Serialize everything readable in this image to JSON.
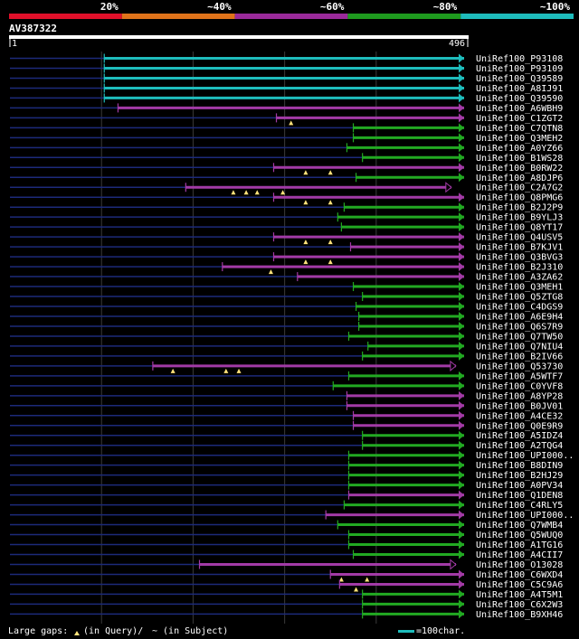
{
  "chart_data": {
    "type": "alignment-map",
    "title": "AV387322",
    "query_start_label": "1",
    "query_end_label": "496",
    "query_length": 496,
    "identity_scale": [
      {
        "label": "20%",
        "color": "#e0102a"
      },
      {
        "label": "~40%",
        "color": "#e0731a"
      },
      {
        "label": "~60%",
        "color": "#9a2a9a"
      },
      {
        "label": "~80%",
        "color": "#1e9a1e"
      },
      {
        "label": "~100%",
        "color": "#1ebcbc"
      }
    ],
    "colors": {
      "high": "#1ebcbc",
      "mid": "#a23aa6",
      "low": "#22a922",
      "gap": "#1c2a7a",
      "grid": "#3a3a3a",
      "marker": "#ffe37a"
    },
    "hits": [
      {
        "label": "UniRef100_P93108",
        "start": 103,
        "tier": "high",
        "gaps": []
      },
      {
        "label": "UniRef100_P93109",
        "start": 103,
        "tier": "high",
        "gaps": []
      },
      {
        "label": "UniRef100_Q39589",
        "start": 103,
        "tier": "high",
        "gaps": []
      },
      {
        "label": "UniRef100_A8IJ91",
        "start": 103,
        "tier": "high",
        "gaps": []
      },
      {
        "label": "UniRef100_Q39590",
        "start": 103,
        "tier": "high",
        "gaps": []
      },
      {
        "label": "UniRef100_A6WBH9",
        "start": 118,
        "tier": "mid",
        "gaps": []
      },
      {
        "label": "UniRef100_C1ZGT2",
        "start": 291,
        "tier": "mid",
        "gaps": [
          307
        ]
      },
      {
        "label": "UniRef100_C7QTN8",
        "start": 375,
        "tier": "low",
        "gaps": []
      },
      {
        "label": "UniRef100_Q3MEH2",
        "start": 375,
        "tier": "low",
        "gaps": []
      },
      {
        "label": "UniRef100_A0YZ66",
        "start": 368,
        "tier": "low",
        "gaps": []
      },
      {
        "label": "UniRef100_B1WS28",
        "start": 385,
        "tier": "low",
        "gaps": []
      },
      {
        "label": "UniRef100_B0RW22",
        "start": 288,
        "tier": "mid",
        "gaps": [
          323,
          350
        ]
      },
      {
        "label": "UniRef100_A8DJP6",
        "start": 378,
        "tier": "low",
        "gaps": []
      },
      {
        "label": "UniRef100_C2A7G2",
        "start": 192,
        "tier": "mid",
        "gaps": [
          244,
          258,
          270,
          298
        ],
        "end": 482,
        "open_end": true
      },
      {
        "label": "UniRef100_Q8PMG6",
        "start": 288,
        "tier": "mid",
        "gaps": [
          323,
          350
        ]
      },
      {
        "label": "UniRef100_B2J2P9",
        "start": 365,
        "tier": "low",
        "gaps": []
      },
      {
        "label": "UniRef100_B9YLJ3",
        "start": 358,
        "tier": "low",
        "gaps": []
      },
      {
        "label": "UniRef100_Q8YT17",
        "start": 362,
        "tier": "low",
        "gaps": []
      },
      {
        "label": "UniRef100_Q4USV5",
        "start": 288,
        "tier": "mid",
        "gaps": [
          323,
          350
        ]
      },
      {
        "label": "UniRef100_B7KJV1",
        "start": 372,
        "tier": "mid",
        "gaps": []
      },
      {
        "label": "UniRef100_Q3BVG3",
        "start": 288,
        "tier": "mid",
        "gaps": [
          323,
          350
        ]
      },
      {
        "label": "UniRef100_B2J310",
        "start": 232,
        "tier": "mid",
        "gaps": [
          285
        ]
      },
      {
        "label": "UniRef100_A3ZA62",
        "start": 314,
        "tier": "mid",
        "gaps": []
      },
      {
        "label": "UniRef100_Q3MEH1",
        "start": 375,
        "tier": "low",
        "gaps": []
      },
      {
        "label": "UniRef100_Q5ZTG8",
        "start": 385,
        "tier": "low",
        "gaps": []
      },
      {
        "label": "UniRef100_C4DGS9",
        "start": 378,
        "tier": "low",
        "gaps": []
      },
      {
        "label": "UniRef100_A6E9H4",
        "start": 381,
        "tier": "low",
        "gaps": []
      },
      {
        "label": "UniRef100_Q6S7R9",
        "start": 381,
        "tier": "low",
        "gaps": []
      },
      {
        "label": "UniRef100_Q7TW50",
        "start": 370,
        "tier": "low",
        "gaps": []
      },
      {
        "label": "UniRef100_Q7NIU4",
        "start": 391,
        "tier": "low",
        "gaps": []
      },
      {
        "label": "UniRef100_B2IV66",
        "start": 385,
        "tier": "low",
        "gaps": []
      },
      {
        "label": "UniRef100_Q53730",
        "start": 156,
        "tier": "mid",
        "gaps": [
          178,
          236,
          250
        ],
        "end": 487,
        "open_end": true
      },
      {
        "label": "UniRef100_A5WTF7",
        "start": 370,
        "tier": "low",
        "gaps": []
      },
      {
        "label": "UniRef100_C0YVF8",
        "start": 353,
        "tier": "low",
        "gaps": []
      },
      {
        "label": "UniRef100_A8YP28",
        "start": 368,
        "tier": "mid",
        "gaps": []
      },
      {
        "label": "UniRef100_B0JV01",
        "start": 368,
        "tier": "mid",
        "gaps": []
      },
      {
        "label": "UniRef100_A4CE32",
        "start": 375,
        "tier": "mid",
        "gaps": []
      },
      {
        "label": "UniRef100_Q0E9R9",
        "start": 375,
        "tier": "mid",
        "gaps": []
      },
      {
        "label": "UniRef100_A5IDZ4",
        "start": 385,
        "tier": "low",
        "gaps": []
      },
      {
        "label": "UniRef100_A2TQG4",
        "start": 385,
        "tier": "low",
        "gaps": []
      },
      {
        "label": "UniRef100_UPI000..",
        "start": 370,
        "tier": "low",
        "gaps": []
      },
      {
        "label": "UniRef100_B8DIN9",
        "start": 370,
        "tier": "low",
        "gaps": []
      },
      {
        "label": "UniRef100_B2HJ29",
        "start": 370,
        "tier": "low",
        "gaps": []
      },
      {
        "label": "UniRef100_A0PV34",
        "start": 370,
        "tier": "low",
        "gaps": []
      },
      {
        "label": "UniRef100_Q1DEN8",
        "start": 370,
        "tier": "mid",
        "gaps": []
      },
      {
        "label": "UniRef100_C4RLY5",
        "start": 365,
        "tier": "low",
        "gaps": []
      },
      {
        "label": "UniRef100_UPI000..",
        "start": 345,
        "tier": "mid",
        "gaps": []
      },
      {
        "label": "UniRef100_Q7WMB4",
        "start": 358,
        "tier": "low",
        "gaps": []
      },
      {
        "label": "UniRef100_Q5WUQ0",
        "start": 370,
        "tier": "low",
        "gaps": []
      },
      {
        "label": "UniRef100_A1TG16",
        "start": 370,
        "tier": "low",
        "gaps": []
      },
      {
        "label": "UniRef100_A4CII7",
        "start": 375,
        "tier": "low",
        "gaps": []
      },
      {
        "label": "UniRef100_O13028",
        "start": 207,
        "tier": "mid",
        "gaps": [],
        "end": 487,
        "open_end": true
      },
      {
        "label": "UniRef100_C6WXD4",
        "start": 350,
        "tier": "mid",
        "gaps": [
          362,
          390
        ]
      },
      {
        "label": "UniRef100_C5C9A6",
        "start": 360,
        "tier": "mid",
        "gaps": [
          378
        ]
      },
      {
        "label": "UniRef100_A4T5M1",
        "start": 385,
        "tier": "low",
        "gaps": []
      },
      {
        "label": "UniRef100_C6X2W3",
        "start": 385,
        "tier": "low",
        "gaps": []
      },
      {
        "label": "UniRef100_B9XH46",
        "start": 385,
        "tier": "low",
        "gaps": []
      }
    ]
  },
  "footer": {
    "gaps_label": "Large gaps:",
    "gaps_query": "(in Query)/",
    "gaps_subject": "~ (in Subject)",
    "scale_label": "=100char."
  }
}
